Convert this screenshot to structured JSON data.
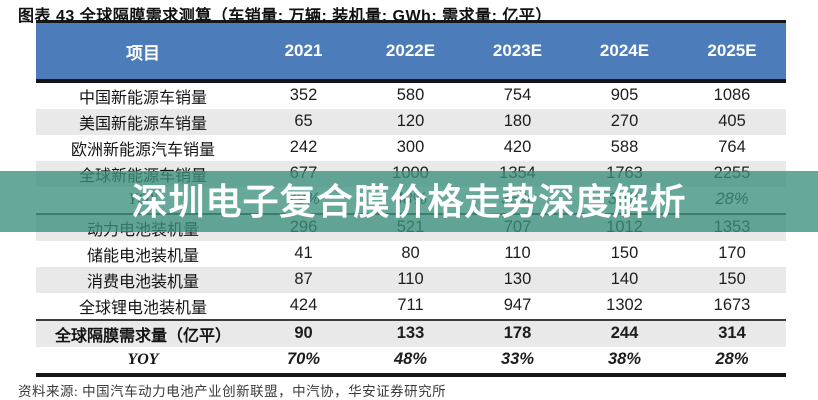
{
  "title": "图表 43 全球隔膜需求测算（车销量: 万辆; 装机量: GWh; 需求量: 亿平）",
  "watermark": {
    "text": "深圳电子复合膜价格走势深度解析",
    "background": "#3b8f7e",
    "text_color": "#ffffff"
  },
  "source": "资料来源: 中国汽车动力电池产业创新联盟，中汽协，华安证券研究所",
  "colors": {
    "header_bg": "#4d7cba",
    "header_text": "#ffffff",
    "stripe_bg": "#e9e9e9",
    "rule": "#161616"
  },
  "chart_data": {
    "type": "table",
    "title": "图表 43 全球隔膜需求测算（车销量: 万辆; 装机量: GWh; 需求量: 亿平）",
    "units": {
      "车销量": "万辆",
      "装机量": "GWh",
      "需求量": "亿平"
    },
    "columns": [
      "项目",
      "2021",
      "2022E",
      "2023E",
      "2024E",
      "2025E"
    ],
    "rows": [
      {
        "label": "中国新能源车销量",
        "values": [
          "352",
          "580",
          "754",
          "905",
          "1086"
        ],
        "bold": false,
        "italic": false,
        "section_end": false
      },
      {
        "label": "美国新能源车销量",
        "values": [
          "65",
          "120",
          "180",
          "270",
          "405"
        ],
        "bold": false,
        "italic": false,
        "section_end": false
      },
      {
        "label": "欧洲新能源汽车销量",
        "values": [
          "242",
          "300",
          "420",
          "588",
          "764"
        ],
        "bold": false,
        "italic": false,
        "section_end": false
      },
      {
        "label": "全球新能源车销量",
        "values": [
          "677",
          "1000",
          "1354",
          "1763",
          "2255"
        ],
        "bold": false,
        "italic": false,
        "section_end": false
      },
      {
        "label": "YOY",
        "values": [
          "72%",
          "48%",
          "35%",
          "30%",
          "28%"
        ],
        "bold": false,
        "italic": true,
        "section_end": true
      },
      {
        "label": "动力电池装机量",
        "values": [
          "296",
          "521",
          "707",
          "1012",
          "1353"
        ],
        "bold": false,
        "italic": false,
        "section_end": false
      },
      {
        "label": "储能电池装机量",
        "values": [
          "41",
          "80",
          "110",
          "150",
          "170"
        ],
        "bold": false,
        "italic": false,
        "section_end": false
      },
      {
        "label": "消费电池装机量",
        "values": [
          "87",
          "110",
          "130",
          "140",
          "150"
        ],
        "bold": false,
        "italic": false,
        "section_end": false
      },
      {
        "label": "全球锂电池装机量",
        "values": [
          "424",
          "711",
          "947",
          "1302",
          "1673"
        ],
        "bold": false,
        "italic": false,
        "section_end": true
      },
      {
        "label": "全球隔膜需求量（亿平）",
        "values": [
          "90",
          "133",
          "178",
          "244",
          "314"
        ],
        "bold": true,
        "italic": false,
        "section_end": false
      },
      {
        "label": "YOY",
        "values": [
          "70%",
          "48%",
          "33%",
          "38%",
          "28%"
        ],
        "bold": true,
        "italic": true,
        "section_end": false
      }
    ],
    "source": "资料来源: 中国汽车动力电池产业创新联盟，中汽协，华安证券研究所"
  }
}
